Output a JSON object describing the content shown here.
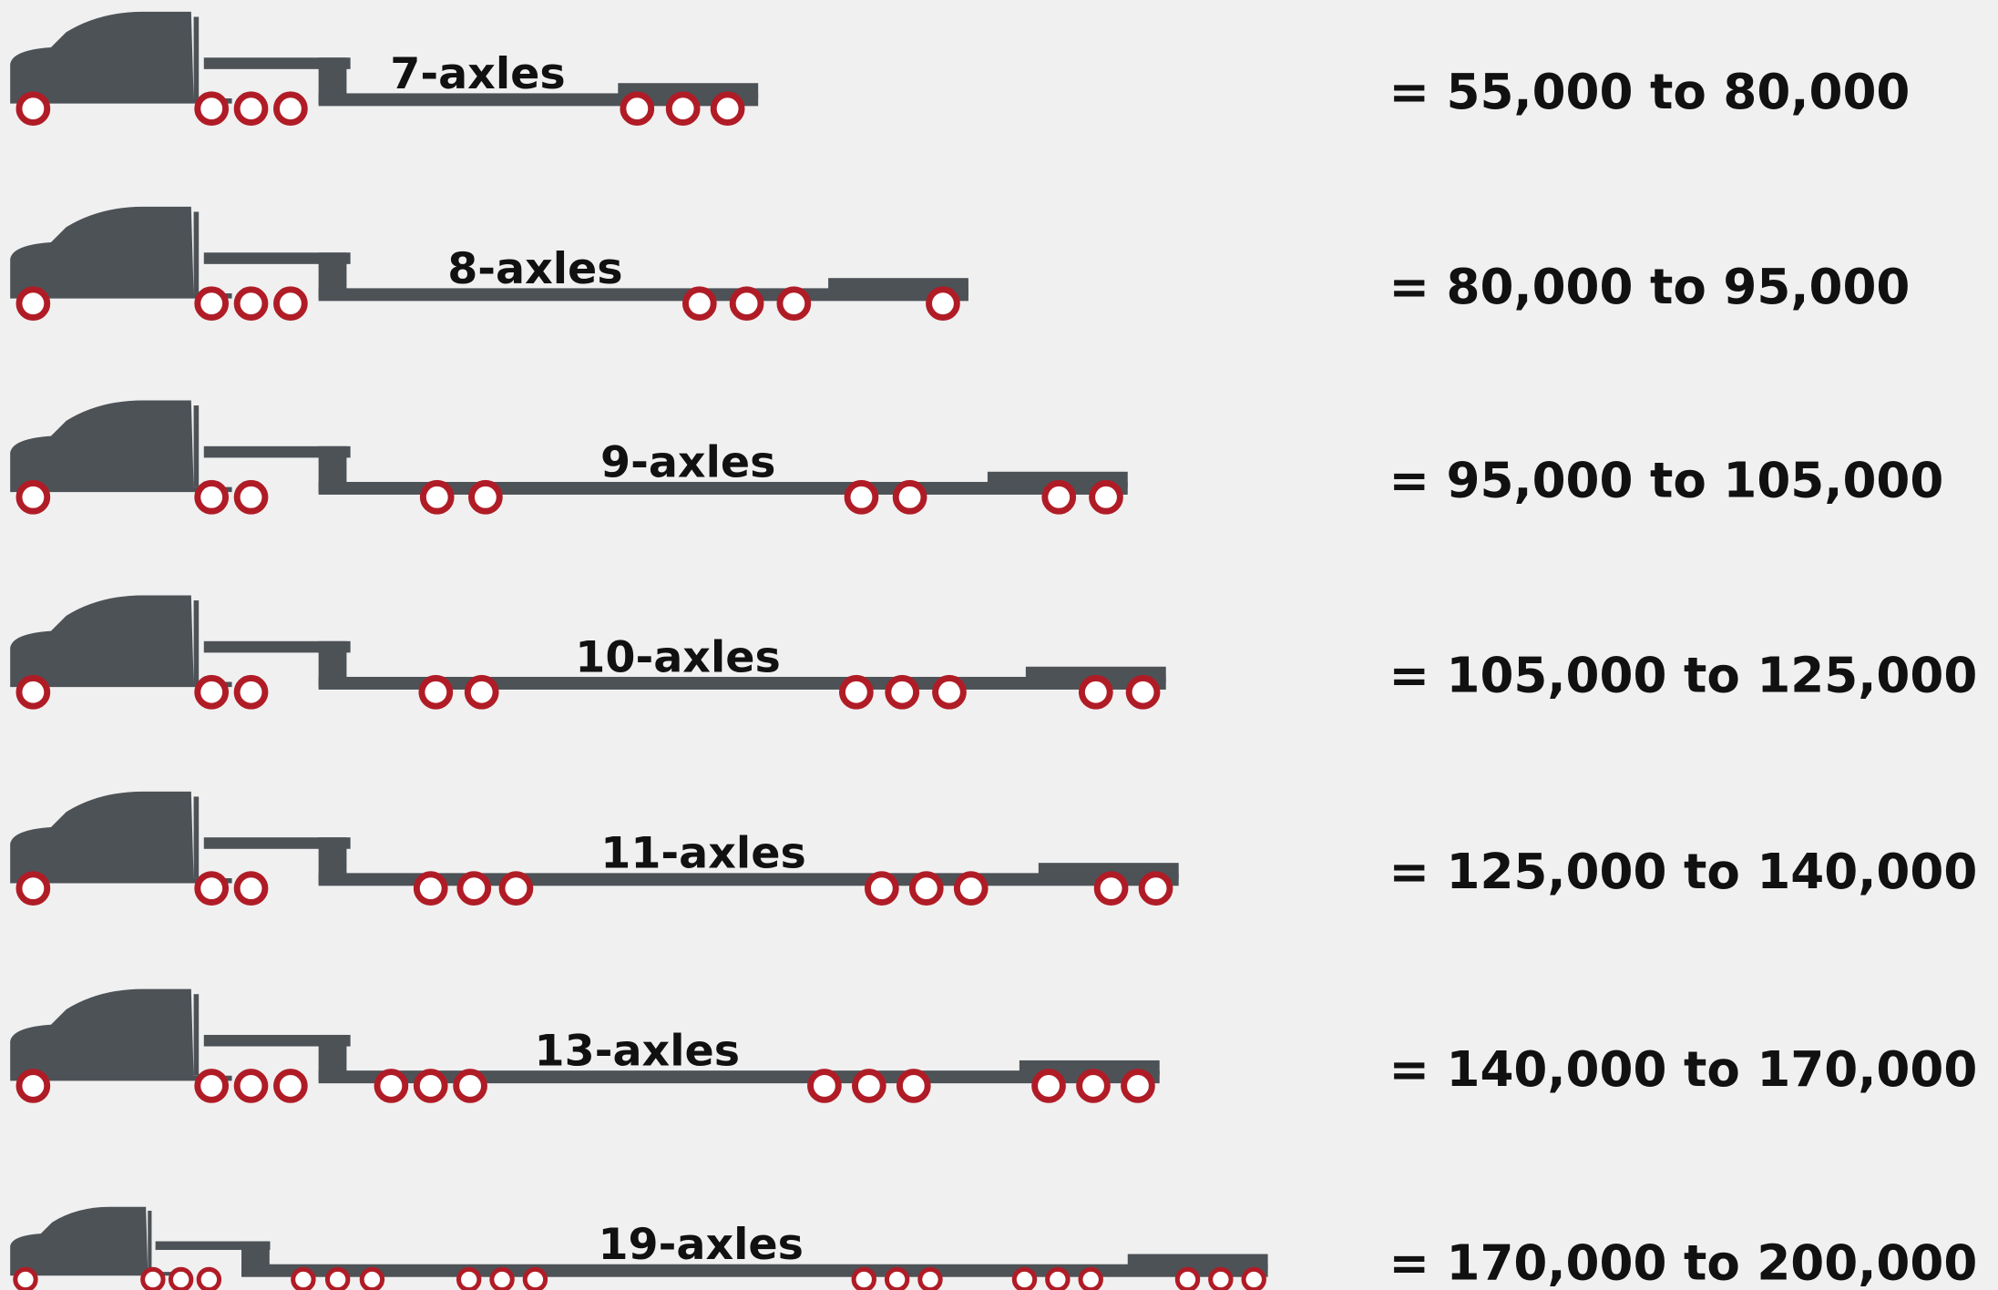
{
  "rows": [
    {
      "label": "7-axles",
      "range": "= 55,000 to 80,000"
    },
    {
      "label": "8-axles",
      "range": "= 80,000 to 95,000"
    },
    {
      "label": "9-axles",
      "range": "= 95,000 to 105,000"
    },
    {
      "label": "10-axles",
      "range": "= 105,000 to 125,000"
    },
    {
      "label": "11-axles",
      "range": "= 125,000 to 140,000"
    },
    {
      "label": "13-axles",
      "range": "= 140,000 to 170,000"
    },
    {
      "label": "19-axles",
      "range": "= 170,000 to 200,000"
    }
  ]
}
